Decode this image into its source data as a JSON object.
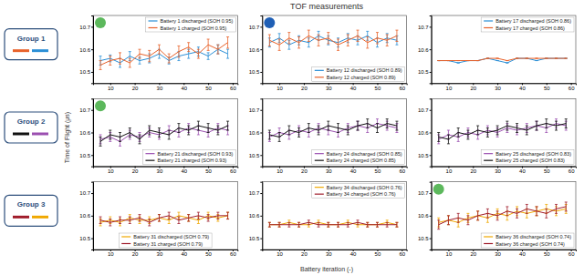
{
  "figure": {
    "title": "TOF measurements",
    "groups": [
      "Group 1",
      "Group 2",
      "Group 3"
    ],
    "xlabel": "Battery iteration (-)",
    "ylabel": "Time of Flight (μs)"
  },
  "chart_data": [
    {
      "type": "line",
      "legend": "upper right",
      "x": [
        6,
        10,
        14,
        18,
        22,
        26,
        30,
        34,
        38,
        42,
        46,
        50,
        54,
        58
      ],
      "xlim": [
        3,
        62
      ],
      "ylim": [
        10.45,
        10.75
      ],
      "xticks": [
        10,
        20,
        30,
        40,
        50,
        60
      ],
      "yticks": [
        10.5,
        10.6,
        10.7
      ],
      "series": [
        {
          "name": "Battery 1 discharged (SOH 0.95)",
          "color": "#2b8fd6",
          "values": [
            10.55,
            10.56,
            10.54,
            10.57,
            10.55,
            10.56,
            10.58,
            10.55,
            10.57,
            10.58,
            10.59,
            10.57,
            10.6,
            10.58
          ],
          "errors": [
            0.02,
            0.015,
            0.02,
            0.02,
            0.015,
            0.02,
            0.02,
            0.015,
            0.02,
            0.02,
            0.02,
            0.015,
            0.02,
            0.02
          ]
        },
        {
          "name": "Battery 1 charged (SOH 0.95)",
          "color": "#e8622a",
          "values": [
            10.53,
            10.55,
            10.56,
            10.54,
            10.58,
            10.57,
            10.6,
            10.56,
            10.59,
            10.61,
            10.58,
            10.62,
            10.6,
            10.63
          ],
          "errors": [
            0.02,
            0.02,
            0.025,
            0.02,
            0.02,
            0.025,
            0.02,
            0.02,
            0.025,
            0.02,
            0.02,
            0.025,
            0.02,
            0.025
          ]
        }
      ]
    },
    {
      "type": "line",
      "legend": "lower right",
      "x": [
        6,
        10,
        14,
        18,
        22,
        26,
        30,
        34,
        38,
        42,
        46,
        50,
        54,
        58
      ],
      "xlim": [
        3,
        62
      ],
      "ylim": [
        10.45,
        10.75
      ],
      "xticks": [
        10,
        20,
        30,
        40,
        50,
        60
      ],
      "yticks": [
        10.5,
        10.6,
        10.7
      ],
      "series": [
        {
          "name": "Battery 12 discharged (SOH 0.89)",
          "color": "#2b8fd6",
          "values": [
            10.63,
            10.65,
            10.62,
            10.64,
            10.63,
            10.66,
            10.64,
            10.63,
            10.65,
            10.64,
            10.66,
            10.63,
            10.65,
            10.64
          ],
          "errors": [
            0.02,
            0.02,
            0.02,
            0.02,
            0.02,
            0.02,
            0.02,
            0.02,
            0.02,
            0.02,
            0.02,
            0.02,
            0.02,
            0.02
          ]
        },
        {
          "name": "Battery 12 charged (SOH 0.89)",
          "color": "#e8622a",
          "values": [
            10.64,
            10.62,
            10.65,
            10.63,
            10.66,
            10.64,
            10.65,
            10.62,
            10.64,
            10.66,
            10.63,
            10.65,
            10.64,
            10.66
          ],
          "errors": [
            0.025,
            0.025,
            0.025,
            0.025,
            0.025,
            0.025,
            0.025,
            0.025,
            0.025,
            0.025,
            0.025,
            0.025,
            0.025,
            0.025
          ]
        }
      ]
    },
    {
      "type": "line",
      "legend": "upper right",
      "x": [
        6,
        10,
        14,
        18,
        22,
        26,
        30,
        34,
        38,
        42,
        46,
        50,
        54,
        58
      ],
      "xlim": [
        3,
        62
      ],
      "ylim": [
        10.45,
        10.75
      ],
      "xticks": [
        10,
        20,
        30,
        40,
        50,
        60
      ],
      "yticks": [
        10.5,
        10.6,
        10.7
      ],
      "series": [
        {
          "name": "Battery 17 discharged (SOH 0.86)",
          "color": "#2b8fd6",
          "values": [
            10.55,
            10.55,
            10.54,
            10.55,
            10.55,
            10.56,
            10.55,
            10.54,
            10.56,
            10.56,
            10.55,
            10.56,
            10.56,
            10.56
          ],
          "errors": [
            0,
            0,
            0,
            0,
            0,
            0,
            0,
            0,
            0,
            0,
            0,
            0,
            0,
            0
          ]
        },
        {
          "name": "Battery 17 charged (SOH 0.86)",
          "color": "#e8622a",
          "values": [
            10.55,
            10.55,
            10.55,
            10.55,
            10.55,
            10.56,
            10.56,
            10.55,
            10.56,
            10.56,
            10.56,
            10.56,
            10.56,
            10.56
          ],
          "errors": [
            0,
            0,
            0,
            0,
            0,
            0,
            0,
            0,
            0,
            0,
            0,
            0,
            0,
            0
          ]
        }
      ]
    },
    {
      "type": "line",
      "legend": "lower right",
      "x": [
        6,
        10,
        14,
        18,
        22,
        26,
        30,
        34,
        38,
        42,
        46,
        50,
        54,
        58
      ],
      "xlim": [
        3,
        62
      ],
      "ylim": [
        10.45,
        10.75
      ],
      "xticks": [
        10,
        20,
        30,
        40,
        50,
        60
      ],
      "yticks": [
        10.5,
        10.6,
        10.7
      ],
      "series": [
        {
          "name": "Battery 21 discharged (SOH 0.93)",
          "color": "#9b4fb0",
          "values": [
            10.57,
            10.58,
            10.56,
            10.59,
            10.58,
            10.6,
            10.59,
            10.61,
            10.6,
            10.62,
            10.61,
            10.6,
            10.62,
            10.61
          ],
          "errors": [
            0.02,
            0.02,
            0.02,
            0.02,
            0.02,
            0.02,
            0.02,
            0.02,
            0.02,
            0.02,
            0.02,
            0.02,
            0.02,
            0.02
          ]
        },
        {
          "name": "Battery 21 charged (SOH 0.93)",
          "color": "#111111",
          "values": [
            10.56,
            10.59,
            10.58,
            10.6,
            10.57,
            10.61,
            10.6,
            10.59,
            10.62,
            10.61,
            10.63,
            10.62,
            10.61,
            10.63
          ],
          "errors": [
            0.02,
            0.02,
            0.02,
            0.02,
            0.02,
            0.02,
            0.02,
            0.02,
            0.02,
            0.02,
            0.02,
            0.02,
            0.02,
            0.02
          ]
        }
      ]
    },
    {
      "type": "line",
      "legend": "lower right",
      "x": [
        6,
        10,
        14,
        18,
        22,
        26,
        30,
        34,
        38,
        42,
        46,
        50,
        54,
        58
      ],
      "xlim": [
        3,
        62
      ],
      "ylim": [
        10.45,
        10.75
      ],
      "xticks": [
        10,
        20,
        30,
        40,
        50,
        60
      ],
      "yticks": [
        10.5,
        10.6,
        10.7
      ],
      "series": [
        {
          "name": "Battery 24 discharged (SOH 0.85)",
          "color": "#9b4fb0",
          "values": [
            10.58,
            10.6,
            10.59,
            10.61,
            10.6,
            10.62,
            10.61,
            10.6,
            10.62,
            10.63,
            10.62,
            10.64,
            10.63,
            10.62
          ],
          "errors": [
            0.02,
            0.02,
            0.02,
            0.02,
            0.02,
            0.02,
            0.02,
            0.02,
            0.02,
            0.02,
            0.02,
            0.02,
            0.02,
            0.02
          ]
        },
        {
          "name": "Battery 24 charged (SOH 0.85)",
          "color": "#111111",
          "values": [
            10.59,
            10.58,
            10.61,
            10.6,
            10.62,
            10.61,
            10.63,
            10.62,
            10.61,
            10.63,
            10.64,
            10.62,
            10.64,
            10.63
          ],
          "errors": [
            0.02,
            0.02,
            0.02,
            0.02,
            0.02,
            0.02,
            0.02,
            0.02,
            0.02,
            0.02,
            0.02,
            0.02,
            0.02,
            0.02
          ]
        }
      ]
    },
    {
      "type": "line",
      "legend": "lower right",
      "x": [
        6,
        10,
        14,
        18,
        22,
        26,
        30,
        34,
        38,
        42,
        46,
        50,
        54,
        58
      ],
      "xlim": [
        3,
        62
      ],
      "ylim": [
        10.45,
        10.75
      ],
      "xticks": [
        10,
        20,
        30,
        40,
        50,
        60
      ],
      "yticks": [
        10.5,
        10.6,
        10.7
      ],
      "series": [
        {
          "name": "Battery 25 discharged (SOH 0.83)",
          "color": "#9b4fb0",
          "values": [
            10.57,
            10.59,
            10.58,
            10.6,
            10.59,
            10.61,
            10.6,
            10.62,
            10.61,
            10.62,
            10.63,
            10.62,
            10.64,
            10.63
          ],
          "errors": [
            0.02,
            0.02,
            0.02,
            0.02,
            0.02,
            0.02,
            0.02,
            0.02,
            0.02,
            0.02,
            0.02,
            0.02,
            0.02,
            0.02
          ]
        },
        {
          "name": "Battery 25 charged (SOH 0.83)",
          "color": "#111111",
          "values": [
            10.58,
            10.57,
            10.6,
            10.59,
            10.61,
            10.6,
            10.61,
            10.63,
            10.62,
            10.61,
            10.63,
            10.64,
            10.63,
            10.64
          ],
          "errors": [
            0.02,
            0.02,
            0.02,
            0.02,
            0.02,
            0.02,
            0.02,
            0.02,
            0.02,
            0.02,
            0.02,
            0.02,
            0.02,
            0.02
          ]
        }
      ]
    },
    {
      "type": "line",
      "legend": "lower center",
      "x": [
        6,
        10,
        14,
        18,
        22,
        26,
        30,
        34,
        38,
        42,
        46,
        50,
        54,
        58
      ],
      "xlim": [
        3,
        62
      ],
      "ylim": [
        10.45,
        10.75
      ],
      "xticks": [
        10,
        20,
        30,
        40,
        50,
        60
      ],
      "yticks": [
        10.5,
        10.6,
        10.7
      ],
      "series": [
        {
          "name": "Battery 31 discharged (SOH 0.79)",
          "color": "#f0a800",
          "values": [
            10.57,
            10.58,
            10.57,
            10.59,
            10.58,
            10.58,
            10.59,
            10.58,
            10.6,
            10.59,
            10.58,
            10.6,
            10.59,
            10.6
          ],
          "errors": [
            0.015,
            0.015,
            0.015,
            0.015,
            0.015,
            0.015,
            0.015,
            0.015,
            0.015,
            0.015,
            0.015,
            0.015,
            0.015,
            0.015
          ]
        },
        {
          "name": "Battery 31 charged (SOH 0.79)",
          "color": "#a01c2a",
          "values": [
            10.58,
            10.57,
            10.58,
            10.58,
            10.59,
            10.57,
            10.59,
            10.6,
            10.58,
            10.59,
            10.6,
            10.59,
            10.6,
            10.6
          ],
          "errors": [
            0.015,
            0.015,
            0.015,
            0.015,
            0.015,
            0.015,
            0.015,
            0.015,
            0.015,
            0.015,
            0.015,
            0.015,
            0.015,
            0.015
          ]
        }
      ]
    },
    {
      "type": "line",
      "legend": "upper right",
      "x": [
        6,
        10,
        14,
        18,
        22,
        26,
        30,
        34,
        38,
        42,
        46,
        50,
        54,
        58
      ],
      "xlim": [
        3,
        62
      ],
      "ylim": [
        10.45,
        10.75
      ],
      "xticks": [
        10,
        20,
        30,
        40,
        50,
        60
      ],
      "yticks": [
        10.5,
        10.6,
        10.7
      ],
      "series": [
        {
          "name": "Battery 34 discharged (SOH 0.76)",
          "color": "#f0a800",
          "values": [
            10.56,
            10.56,
            10.57,
            10.56,
            10.56,
            10.57,
            10.56,
            10.56,
            10.57,
            10.56,
            10.56,
            10.56,
            10.57,
            10.56
          ],
          "errors": [
            0.01,
            0.01,
            0.01,
            0.01,
            0.01,
            0.01,
            0.01,
            0.01,
            0.01,
            0.01,
            0.01,
            0.01,
            0.01,
            0.01
          ]
        },
        {
          "name": "Battery 34 charged (SOH 0.76)",
          "color": "#a01c2a",
          "values": [
            10.56,
            10.56,
            10.56,
            10.56,
            10.57,
            10.56,
            10.56,
            10.56,
            10.56,
            10.57,
            10.56,
            10.56,
            10.56,
            10.56
          ],
          "errors": [
            0.01,
            0.01,
            0.01,
            0.01,
            0.01,
            0.01,
            0.01,
            0.01,
            0.01,
            0.01,
            0.01,
            0.01,
            0.01,
            0.01
          ]
        }
      ]
    },
    {
      "type": "line",
      "legend": "lower right",
      "x": [
        6,
        10,
        14,
        18,
        22,
        26,
        30,
        34,
        38,
        42,
        46,
        50,
        54,
        58
      ],
      "xlim": [
        3,
        62
      ],
      "ylim": [
        10.45,
        10.75
      ],
      "xticks": [
        10,
        20,
        30,
        40,
        50,
        60
      ],
      "yticks": [
        10.5,
        10.6,
        10.7
      ],
      "series": [
        {
          "name": "Battery 36 discharged (SOH 0.74)",
          "color": "#f0a800",
          "values": [
            10.57,
            10.58,
            10.57,
            10.59,
            10.6,
            10.59,
            10.61,
            10.6,
            10.62,
            10.61,
            10.62,
            10.63,
            10.62,
            10.63
          ],
          "errors": [
            0.02,
            0.02,
            0.02,
            0.02,
            0.02,
            0.02,
            0.02,
            0.02,
            0.02,
            0.02,
            0.02,
            0.02,
            0.02,
            0.02
          ]
        },
        {
          "name": "Battery 36 charged (SOH 0.74)",
          "color": "#a01c2a",
          "values": [
            10.56,
            10.58,
            10.59,
            10.58,
            10.6,
            10.61,
            10.6,
            10.62,
            10.61,
            10.63,
            10.62,
            10.61,
            10.63,
            10.64
          ],
          "errors": [
            0.02,
            0.02,
            0.02,
            0.02,
            0.02,
            0.02,
            0.02,
            0.02,
            0.02,
            0.02,
            0.02,
            0.02,
            0.02,
            0.02
          ]
        }
      ]
    }
  ]
}
